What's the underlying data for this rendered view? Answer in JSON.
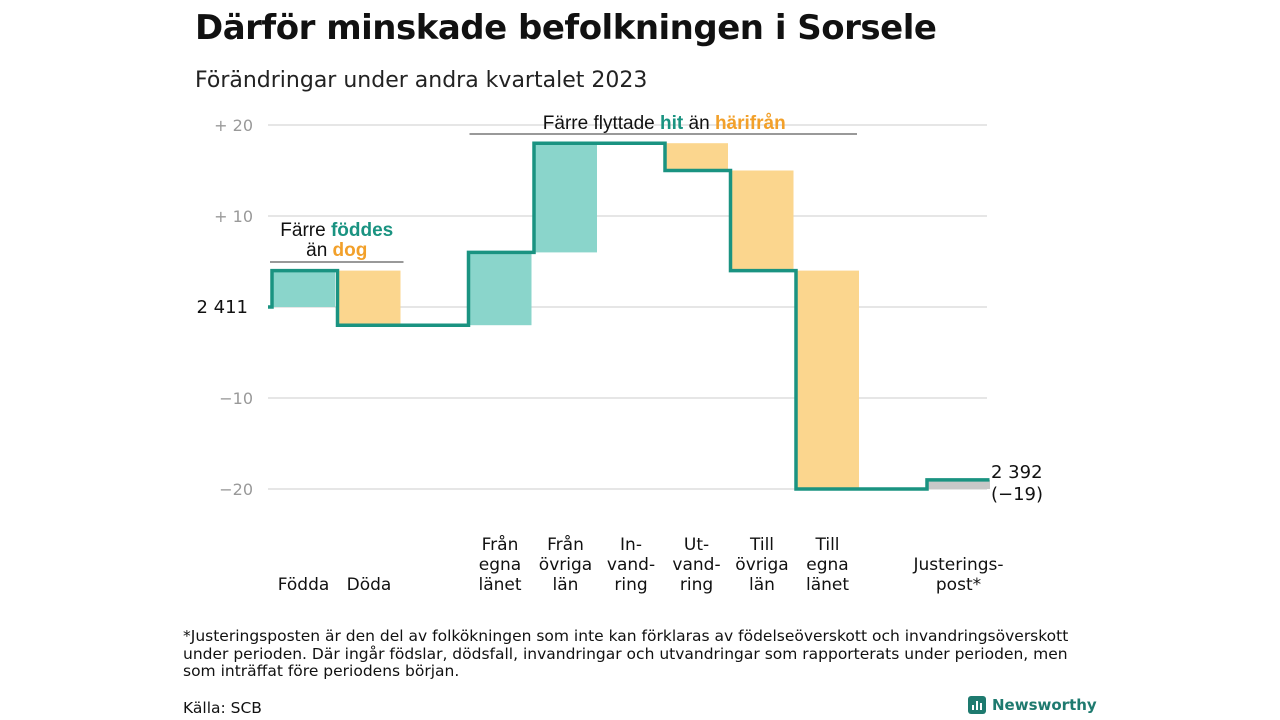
{
  "title": "Därför minskade befolkningen i Sorsele",
  "subtitle": "Förändringar under andra kvartalet 2023",
  "footnote": "*Justeringsposten är den del av folkökningen som inte kan förklaras av födelseöverskott och invandringsöverskott under perioden. Där ingår födslar, dödsfall, invandringar och utvandringar som rapporterats under perioden, men som inträffat före periodens början.",
  "source": "Källa: SCB",
  "brand": "Newsworthy",
  "colors": {
    "increase": "#8ad5cb",
    "decrease": "#fbd68e",
    "line": "#1a9381",
    "adjustment": "#c8c8c8",
    "grid": "#dddddd",
    "teal_text": "#1a9381",
    "orange_text": "#f2a02a"
  },
  "chart_data": {
    "type": "waterfall",
    "start_label": "2  411",
    "end_label": "2 392",
    "end_change_label": "(−19)",
    "start_value": 0,
    "ylim": [
      -22,
      22
    ],
    "y_ticks": [
      {
        "value": 20,
        "label": "+  20"
      },
      {
        "value": 10,
        "label": "+  10"
      },
      {
        "value": -10,
        "label": "−10"
      },
      {
        "value": -20,
        "label": "−20"
      }
    ],
    "grid": true,
    "steps": [
      {
        "name": "Födda",
        "label_lines": [
          "Födda"
        ],
        "change": 4,
        "kind": "increase"
      },
      {
        "name": "Döda",
        "label_lines": [
          "Döda"
        ],
        "change": -6,
        "kind": "decrease"
      },
      {
        "name": "",
        "label_lines": [],
        "change": 0,
        "kind": "none"
      },
      {
        "name": "Från egna länet",
        "label_lines": [
          "Från",
          "egna",
          "länet"
        ],
        "change": 8,
        "kind": "increase"
      },
      {
        "name": "Från övriga län",
        "label_lines": [
          "Från",
          "övriga",
          "län"
        ],
        "change": 12,
        "kind": "increase"
      },
      {
        "name": "Invandring",
        "label_lines": [
          "In-",
          "vand-",
          "ring"
        ],
        "change": 0,
        "kind": "increase"
      },
      {
        "name": "Utvandring",
        "label_lines": [
          "Ut-",
          "vand-",
          "ring"
        ],
        "change": -3,
        "kind": "decrease"
      },
      {
        "name": "Till övriga län",
        "label_lines": [
          "Till",
          "övriga",
          "län"
        ],
        "change": -11,
        "kind": "decrease"
      },
      {
        "name": "Till egna länet",
        "label_lines": [
          "Till",
          "egna",
          "länet"
        ],
        "change": -24,
        "kind": "decrease"
      },
      {
        "name": "",
        "label_lines": [],
        "change": 0,
        "kind": "none"
      },
      {
        "name": "Justeringspost*",
        "label_lines": [
          "Justerings-",
          "post*"
        ],
        "change": 1,
        "kind": "adjustment"
      }
    ],
    "annotations": [
      {
        "id": "births",
        "line1_prefix": "Färre ",
        "line1_teal": "föddes",
        "line2_prefix": "än ",
        "line2_orange": "dog",
        "start_step": 0,
        "end_step": 1
      },
      {
        "id": "moves",
        "line1_prefix": "Färre flyttade ",
        "line1_teal": "hit",
        "line1_mid": " än ",
        "line1_orange": "härifrån",
        "start_step": 3,
        "end_step": 8
      }
    ]
  }
}
